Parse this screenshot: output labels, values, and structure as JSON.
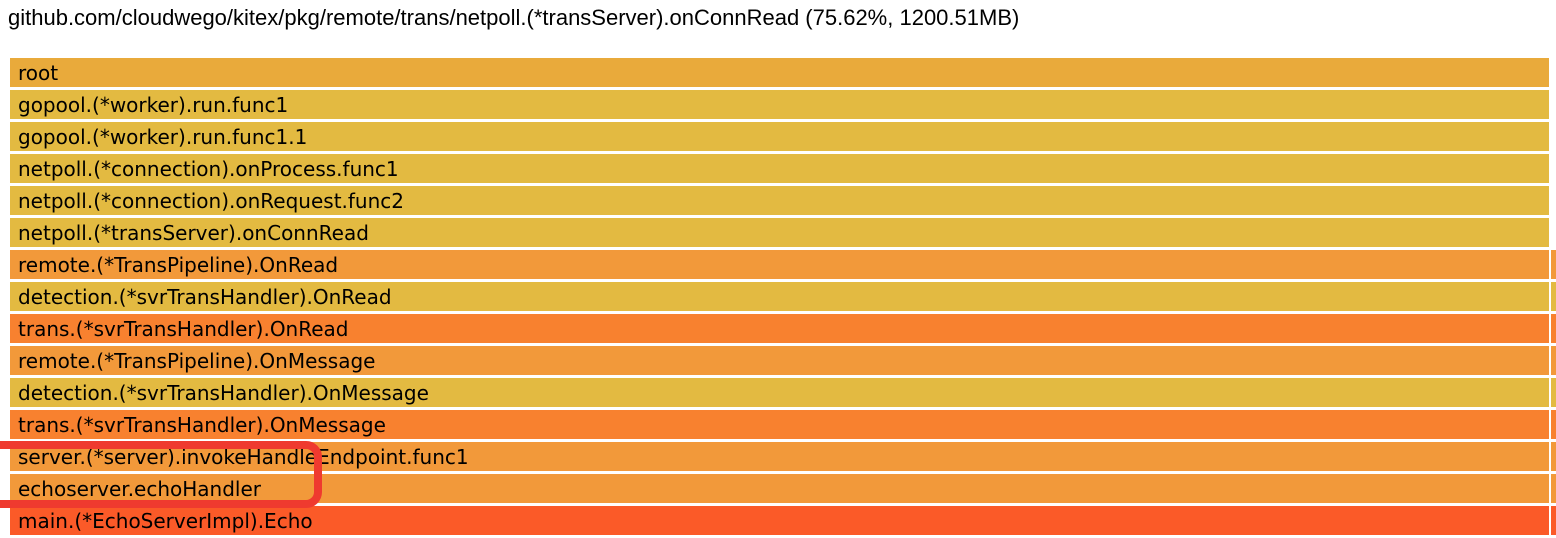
{
  "header": {
    "title": "github.com/cloudwego/kitex/pkg/remote/trans/netpoll.(*transServer).onConnRead (75.62%, 1200.51MB)"
  },
  "flamegraph": {
    "frames": [
      {
        "label": "root",
        "color": "#e9aa3b",
        "right_sliver": false
      },
      {
        "label": "gopool.(*worker).run.func1",
        "color": "#e3ba41",
        "right_sliver": false
      },
      {
        "label": "gopool.(*worker).run.func1.1",
        "color": "#e3ba41",
        "right_sliver": false
      },
      {
        "label": "netpoll.(*connection).onProcess.func1",
        "color": "#e3ba41",
        "right_sliver": false
      },
      {
        "label": "netpoll.(*connection).onRequest.func2",
        "color": "#e3ba41",
        "right_sliver": false
      },
      {
        "label": "netpoll.(*transServer).onConnRead",
        "color": "#e3ba41",
        "right_sliver": false
      },
      {
        "label": "remote.(*TransPipeline).OnRead",
        "color": "#f2993a",
        "right_sliver": true
      },
      {
        "label": "detection.(*svrTransHandler).OnRead",
        "color": "#e3ba41",
        "right_sliver": true
      },
      {
        "label": "trans.(*svrTransHandler).OnRead",
        "color": "#f8812f",
        "right_sliver": true
      },
      {
        "label": "remote.(*TransPipeline).OnMessage",
        "color": "#f2993a",
        "right_sliver": true
      },
      {
        "label": "detection.(*svrTransHandler).OnMessage",
        "color": "#e3ba41",
        "right_sliver": true
      },
      {
        "label": "trans.(*svrTransHandler).OnMessage",
        "color": "#f8812f",
        "right_sliver": true
      },
      {
        "label": "server.(*server).invokeHandleEndpoint.func1",
        "color": "#f2993a",
        "right_sliver": true
      },
      {
        "label": "echoserver.echoHandler",
        "color": "#f2993a",
        "right_sliver": true
      },
      {
        "label": "main.(*EchoServerImpl).Echo",
        "color": "#fb5a28",
        "right_sliver": true
      }
    ],
    "annotation": {
      "color": "#ef3a2f",
      "highlighted_frames": [
        "server.(*server).invokeHandleEndpoint.func1",
        "echoserver.echoHandler"
      ]
    }
  },
  "chart_data": {
    "type": "bar",
    "variant": "flamegraph-call-stack",
    "title": "github.com/cloudwego/kitex/pkg/remote/trans/netpoll.(*transServer).onConnRead (75.62%, 1200.51MB)",
    "selected_frame": {
      "name": "github.com/cloudwego/kitex/pkg/remote/trans/netpoll.(*transServer).onConnRead",
      "percent": 75.62,
      "value": "1200.51MB"
    },
    "categories": [
      "root",
      "gopool.(*worker).run.func1",
      "gopool.(*worker).run.func1.1",
      "netpoll.(*connection).onProcess.func1",
      "netpoll.(*connection).onRequest.func2",
      "netpoll.(*transServer).onConnRead",
      "remote.(*TransPipeline).OnRead",
      "detection.(*svrTransHandler).OnRead",
      "trans.(*svrTransHandler).OnRead",
      "remote.(*TransPipeline).OnMessage",
      "detection.(*svrTransHandler).OnMessage",
      "trans.(*svrTransHandler).OnMessage",
      "server.(*server).invokeHandleEndpoint.func1",
      "echoserver.echoHandler",
      "main.(*EchoServerImpl).Echo"
    ],
    "values": [
      100,
      100,
      100,
      100,
      100,
      100,
      100,
      100,
      100,
      100,
      100,
      100,
      100,
      100,
      100
    ],
    "xlabel": "",
    "ylabel": "",
    "legend": false,
    "orientation": "horizontal-stack-top-down"
  }
}
